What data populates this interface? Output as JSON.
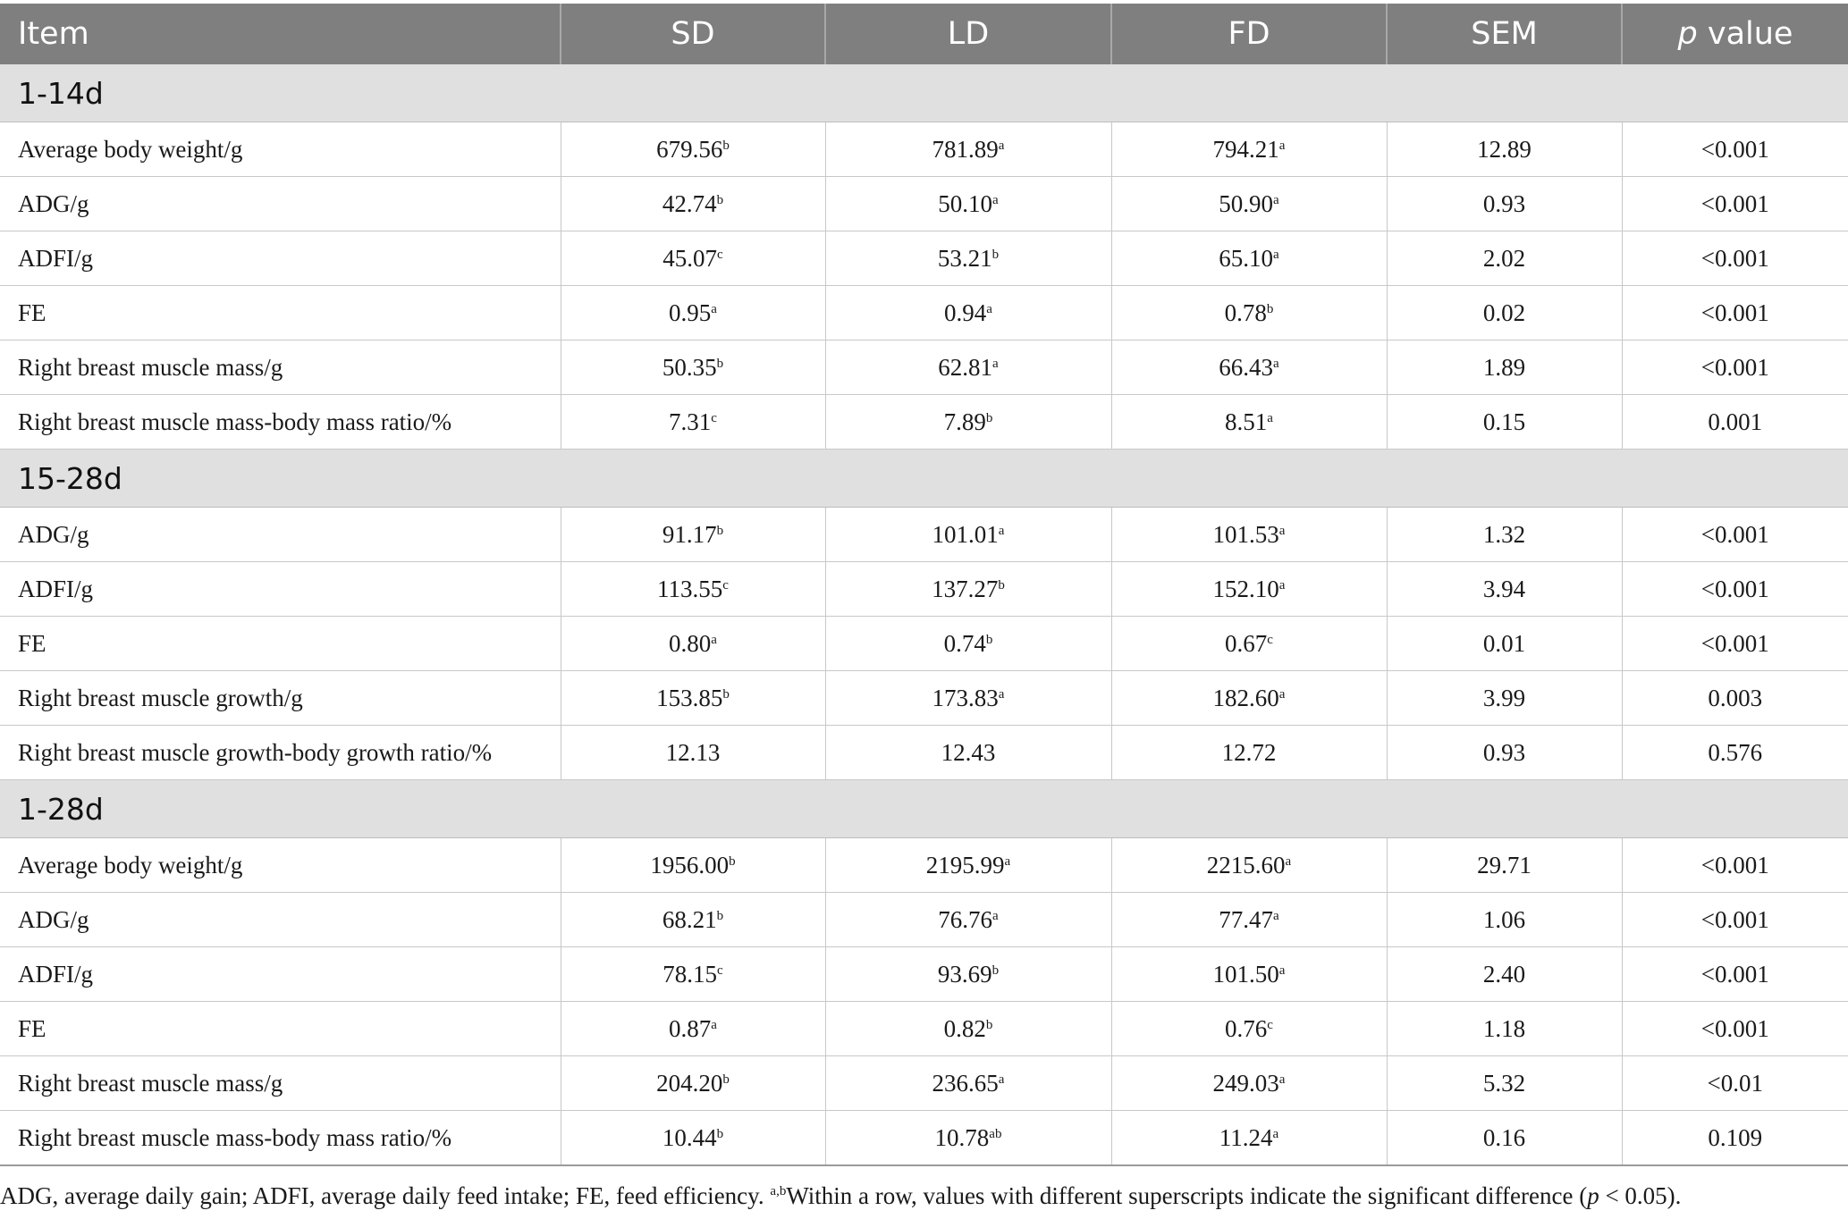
{
  "header": {
    "item": "Item",
    "sd": "SD",
    "ld": "LD",
    "fd": "FD",
    "sem": "SEM",
    "p_italic": "p",
    "p_rest": " value"
  },
  "sections": [
    {
      "title": "1-14d",
      "rows": [
        {
          "label": "Average body weight/g",
          "sd": "679.56",
          "sd_sup": "b",
          "ld": "781.89",
          "ld_sup": "a",
          "fd": "794.21",
          "fd_sup": "a",
          "sem": "12.89",
          "p": "<0.001"
        },
        {
          "label": "ADG/g",
          "sd": "42.74",
          "sd_sup": "b",
          "ld": "50.10",
          "ld_sup": "a",
          "fd": "50.90",
          "fd_sup": "a",
          "sem": "0.93",
          "p": "<0.001"
        },
        {
          "label": "ADFI/g",
          "sd": "45.07",
          "sd_sup": "c",
          "ld": "53.21",
          "ld_sup": "b",
          "fd": "65.10",
          "fd_sup": "a",
          "sem": "2.02",
          "p": "<0.001"
        },
        {
          "label": "FE",
          "sd": "0.95",
          "sd_sup": "a",
          "ld": "0.94",
          "ld_sup": "a",
          "fd": "0.78",
          "fd_sup": "b",
          "sem": "0.02",
          "p": "<0.001"
        },
        {
          "label": "Right breast muscle mass/g",
          "sd": "50.35",
          "sd_sup": "b",
          "ld": "62.81",
          "ld_sup": "a",
          "fd": "66.43",
          "fd_sup": "a",
          "sem": "1.89",
          "p": "<0.001"
        },
        {
          "label": "Right breast muscle mass-body mass ratio/%",
          "sd": "7.31",
          "sd_sup": "c",
          "ld": "7.89",
          "ld_sup": "b",
          "fd": "8.51",
          "fd_sup": "a",
          "sem": "0.15",
          "p": "0.001"
        }
      ]
    },
    {
      "title": "15-28d",
      "rows": [
        {
          "label": "ADG/g",
          "sd": "91.17",
          "sd_sup": "b",
          "ld": "101.01",
          "ld_sup": "a",
          "fd": "101.53",
          "fd_sup": "a",
          "sem": "1.32",
          "p": "<0.001"
        },
        {
          "label": "ADFI/g",
          "sd": "113.55",
          "sd_sup": "c",
          "ld": "137.27",
          "ld_sup": "b",
          "fd": "152.10",
          "fd_sup": "a",
          "sem": "3.94",
          "p": "<0.001"
        },
        {
          "label": "FE",
          "sd": "0.80",
          "sd_sup": "a",
          "ld": "0.74",
          "ld_sup": "b",
          "fd": "0.67",
          "fd_sup": "c",
          "sem": "0.01",
          "p": "<0.001"
        },
        {
          "label": "Right breast muscle growth/g",
          "sd": "153.85",
          "sd_sup": "b",
          "ld": "173.83",
          "ld_sup": "a",
          "fd": "182.60",
          "fd_sup": "a",
          "sem": "3.99",
          "p": "0.003"
        },
        {
          "label": "Right breast muscle growth-body growth ratio/%",
          "sd": "12.13",
          "sd_sup": "",
          "ld": "12.43",
          "ld_sup": "",
          "fd": "12.72",
          "fd_sup": "",
          "sem": "0.93",
          "p": "0.576"
        }
      ]
    },
    {
      "title": "1-28d",
      "rows": [
        {
          "label": "Average body weight/g",
          "sd": "1956.00",
          "sd_sup": "b",
          "ld": "2195.99",
          "ld_sup": "a",
          "fd": "2215.60",
          "fd_sup": "a",
          "sem": "29.71",
          "p": "<0.001"
        },
        {
          "label": "ADG/g",
          "sd": "68.21",
          "sd_sup": "b",
          "ld": "76.76",
          "ld_sup": "a",
          "fd": "77.47",
          "fd_sup": "a",
          "sem": "1.06",
          "p": "<0.001"
        },
        {
          "label": "ADFI/g",
          "sd": "78.15",
          "sd_sup": "c",
          "ld": "93.69",
          "ld_sup": "b",
          "fd": "101.50",
          "fd_sup": "a",
          "sem": "2.40",
          "p": "<0.001"
        },
        {
          "label": "FE",
          "sd": "0.87",
          "sd_sup": "a",
          "ld": "0.82",
          "ld_sup": "b",
          "fd": "0.76",
          "fd_sup": "c",
          "sem": "1.18",
          "p": "<0.001"
        },
        {
          "label": "Right breast muscle mass/g",
          "sd": "204.20",
          "sd_sup": "b",
          "ld": "236.65",
          "ld_sup": "a",
          "fd": "249.03",
          "fd_sup": "a",
          "sem": "5.32",
          "p": "<0.01"
        },
        {
          "label": "Right breast muscle mass-body mass ratio/%",
          "sd": "10.44",
          "sd_sup": "b",
          "ld": "10.78",
          "ld_sup": "ab",
          "fd": "11.24",
          "fd_sup": "a",
          "sem": "0.16",
          "p": "0.109"
        }
      ]
    }
  ],
  "footnote": {
    "text_1": "ADG, average daily gain; ADFI, average daily feed intake; FE, feed efficiency. ",
    "sup": "a,b",
    "text_2": "Within a row, values with different superscripts indicate the significant difference (",
    "p_italic": "p",
    "text_3": " < 0.05)."
  },
  "colors": {
    "header_bg": "#7f7f7f",
    "section_bg": "#e1e0e1"
  }
}
